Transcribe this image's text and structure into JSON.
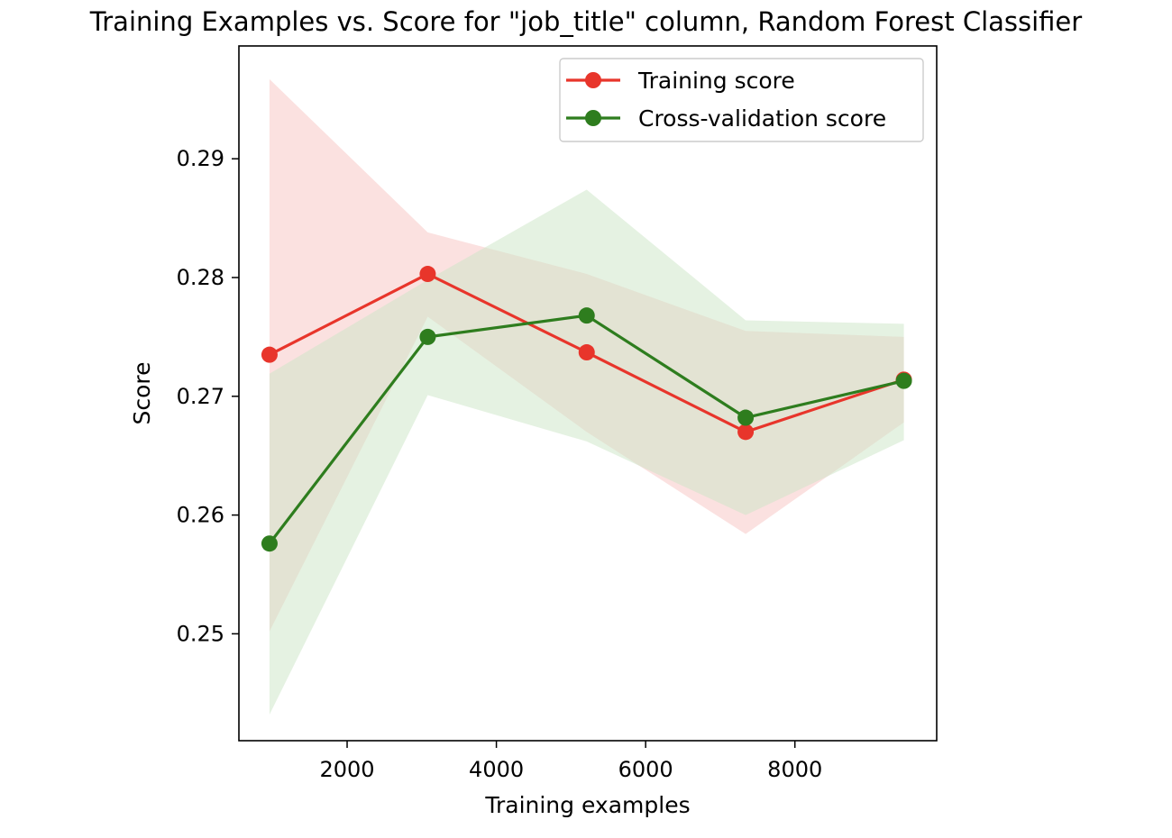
{
  "chart_data": {
    "type": "line",
    "title": "Training Examples vs. Score for \"job_title\" column, Random Forest Classifier",
    "xlabel": "Training examples",
    "ylabel": "Score",
    "xlim": [
      550,
      9900
    ],
    "ylim": [
      0.241,
      0.2995
    ],
    "xticks": [
      2000,
      4000,
      6000,
      8000
    ],
    "xtick_labels": [
      "2000",
      "4000",
      "6000",
      "8000"
    ],
    "yticks": [
      0.25,
      0.26,
      0.27,
      0.28,
      0.29
    ],
    "ytick_labels": [
      "0.25",
      "0.26",
      "0.27",
      "0.28",
      "0.29"
    ],
    "grid": false,
    "legend_position": "top-right",
    "x": [
      960,
      3080,
      5210,
      7340,
      9460
    ],
    "series": [
      {
        "name": "Training score",
        "color": "#e8352b",
        "values": [
          0.2735,
          0.2803,
          0.2737,
          0.267,
          0.2714
        ],
        "band_upper": [
          0.2967,
          0.2838,
          0.2803,
          0.2755,
          0.275
        ],
        "band_lower": [
          0.2502,
          0.2767,
          0.267,
          0.2584,
          0.2678
        ],
        "band_color": "#f8c9c6"
      },
      {
        "name": "Cross-validation score",
        "color": "#2e7d1e",
        "values": [
          0.2576,
          0.275,
          0.2768,
          0.2682,
          0.2713
        ],
        "band_upper": [
          0.2719,
          0.2798,
          0.2874,
          0.2764,
          0.2761
        ],
        "band_lower": [
          0.2432,
          0.2701,
          0.2662,
          0.26,
          0.2663
        ],
        "band_color": "#cce5c6"
      }
    ]
  }
}
